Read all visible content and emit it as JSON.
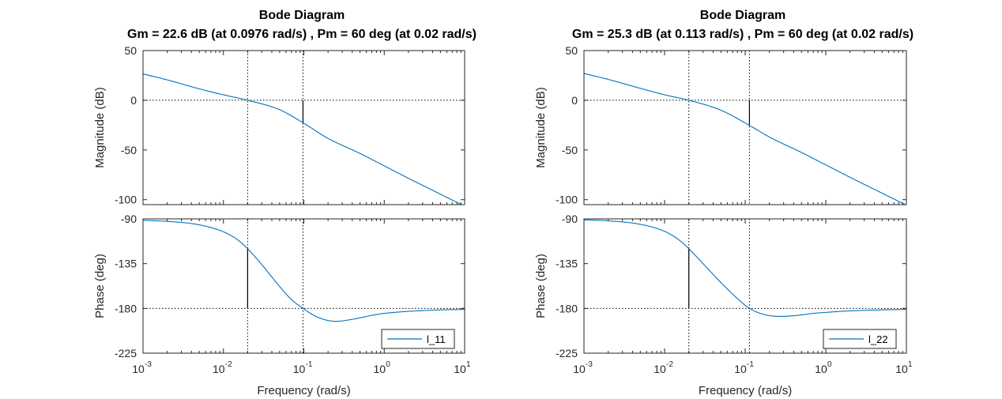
{
  "chart_data": [
    {
      "type": "line",
      "title": "Bode Diagram",
      "subtitle": "Gm = 22.6 dB (at 0.0976 rad/s) ,  Pm = 60 deg (at 0.02 rad/s)",
      "xlabel": "Frequency  (rad/s)",
      "x_scale": "log",
      "xlim": [
        0.001,
        10
      ],
      "x_ticks": [
        {
          "base": "10",
          "exp": "-3"
        },
        {
          "base": "10",
          "exp": "-2"
        },
        {
          "base": "10",
          "exp": "-1"
        },
        {
          "base": "10",
          "exp": "0"
        },
        {
          "base": "10",
          "exp": "1"
        }
      ],
      "legend": {
        "label": "l_11",
        "location": "bottom-right"
      },
      "color": "#0072BD",
      "gain_crossover_freq": 0.02,
      "phase_crossover_freq": 0.0976,
      "magnitude": {
        "ylabel": "Magnitude (dB)",
        "ylim": [
          -105,
          50
        ],
        "y_ticks": [
          "50",
          "0",
          "-50",
          "-100"
        ],
        "x": [
          0.001,
          0.002,
          0.005,
          0.01,
          0.02,
          0.05,
          0.0976,
          0.2,
          0.5,
          1,
          2,
          5,
          10
        ],
        "y": [
          26.5,
          20.5,
          11.5,
          5.5,
          0,
          -9.5,
          -22.6,
          -38.4,
          -53.5,
          -66,
          -78.5,
          -94.5,
          -106.5
        ]
      },
      "phase": {
        "ylabel": "Phase (deg)",
        "ylim": [
          -225,
          -90
        ],
        "y_ticks": [
          "-90",
          "-135",
          "-180",
          "-225"
        ],
        "x": [
          0.001,
          0.002,
          0.005,
          0.01,
          0.015,
          0.02,
          0.03,
          0.05,
          0.07,
          0.0976,
          0.15,
          0.25,
          0.4,
          0.7,
          1,
          2,
          5,
          10
        ],
        "y": [
          -91.5,
          -92.5,
          -96,
          -103,
          -111,
          -120,
          -136,
          -158,
          -171,
          -180,
          -189,
          -193,
          -191,
          -187,
          -185,
          -183,
          -181.5,
          -181
        ]
      }
    },
    {
      "type": "line",
      "title": "Bode Diagram",
      "subtitle": "Gm = 25.3 dB (at 0.113 rad/s) ,  Pm = 60 deg (at 0.02 rad/s)",
      "xlabel": "Frequency  (rad/s)",
      "x_scale": "log",
      "xlim": [
        0.001,
        10
      ],
      "x_ticks": [
        {
          "base": "10",
          "exp": "-3"
        },
        {
          "base": "10",
          "exp": "-2"
        },
        {
          "base": "10",
          "exp": "-1"
        },
        {
          "base": "10",
          "exp": "0"
        },
        {
          "base": "10",
          "exp": "1"
        }
      ],
      "legend": {
        "label": "l_22",
        "location": "bottom-right"
      },
      "color": "#0072BD",
      "gain_crossover_freq": 0.02,
      "phase_crossover_freq": 0.113,
      "magnitude": {
        "ylabel": "Magnitude (dB)",
        "ylim": [
          -105,
          50
        ],
        "y_ticks": [
          "50",
          "0",
          "-50",
          "-100"
        ],
        "x": [
          0.001,
          0.002,
          0.005,
          0.01,
          0.02,
          0.05,
          0.113,
          0.2,
          0.5,
          1,
          2,
          5,
          10
        ],
        "y": [
          27,
          21,
          12,
          5.5,
          0,
          -10,
          -25.3,
          -37,
          -52.5,
          -65,
          -77.5,
          -93.5,
          -105.5
        ]
      },
      "phase": {
        "ylabel": "Phase (deg)",
        "ylim": [
          -225,
          -90
        ],
        "y_ticks": [
          "-90",
          "-135",
          "-180",
          "-225"
        ],
        "x": [
          0.001,
          0.002,
          0.005,
          0.01,
          0.015,
          0.02,
          0.03,
          0.05,
          0.08,
          0.113,
          0.17,
          0.27,
          0.45,
          0.7,
          1,
          2,
          5,
          10
        ],
        "y": [
          -91,
          -92,
          -95.5,
          -102.5,
          -111,
          -120,
          -135,
          -154,
          -170,
          -180,
          -186,
          -188,
          -187,
          -185,
          -184,
          -182.5,
          -181.5,
          -181
        ]
      }
    }
  ]
}
